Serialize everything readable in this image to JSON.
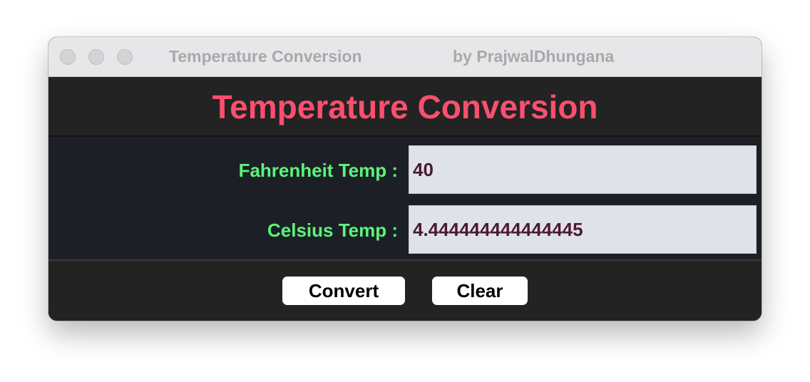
{
  "window": {
    "title": "Temperature Conversion",
    "author": "by PrajwalDhungana"
  },
  "header": {
    "title": "Temperature Conversion"
  },
  "form": {
    "fahrenheit_label": "Fahrenheit Temp :",
    "fahrenheit_value": "40",
    "celsius_label": "Celsius Temp :",
    "celsius_value": "4.444444444444445"
  },
  "buttons": {
    "convert_label": "Convert",
    "clear_label": "Clear"
  },
  "colors": {
    "header_title": "#fb4f6e",
    "label": "#5df27a",
    "input_text": "#4c1838",
    "panel_dark": "#232323",
    "form_bg": "#1c2026"
  }
}
